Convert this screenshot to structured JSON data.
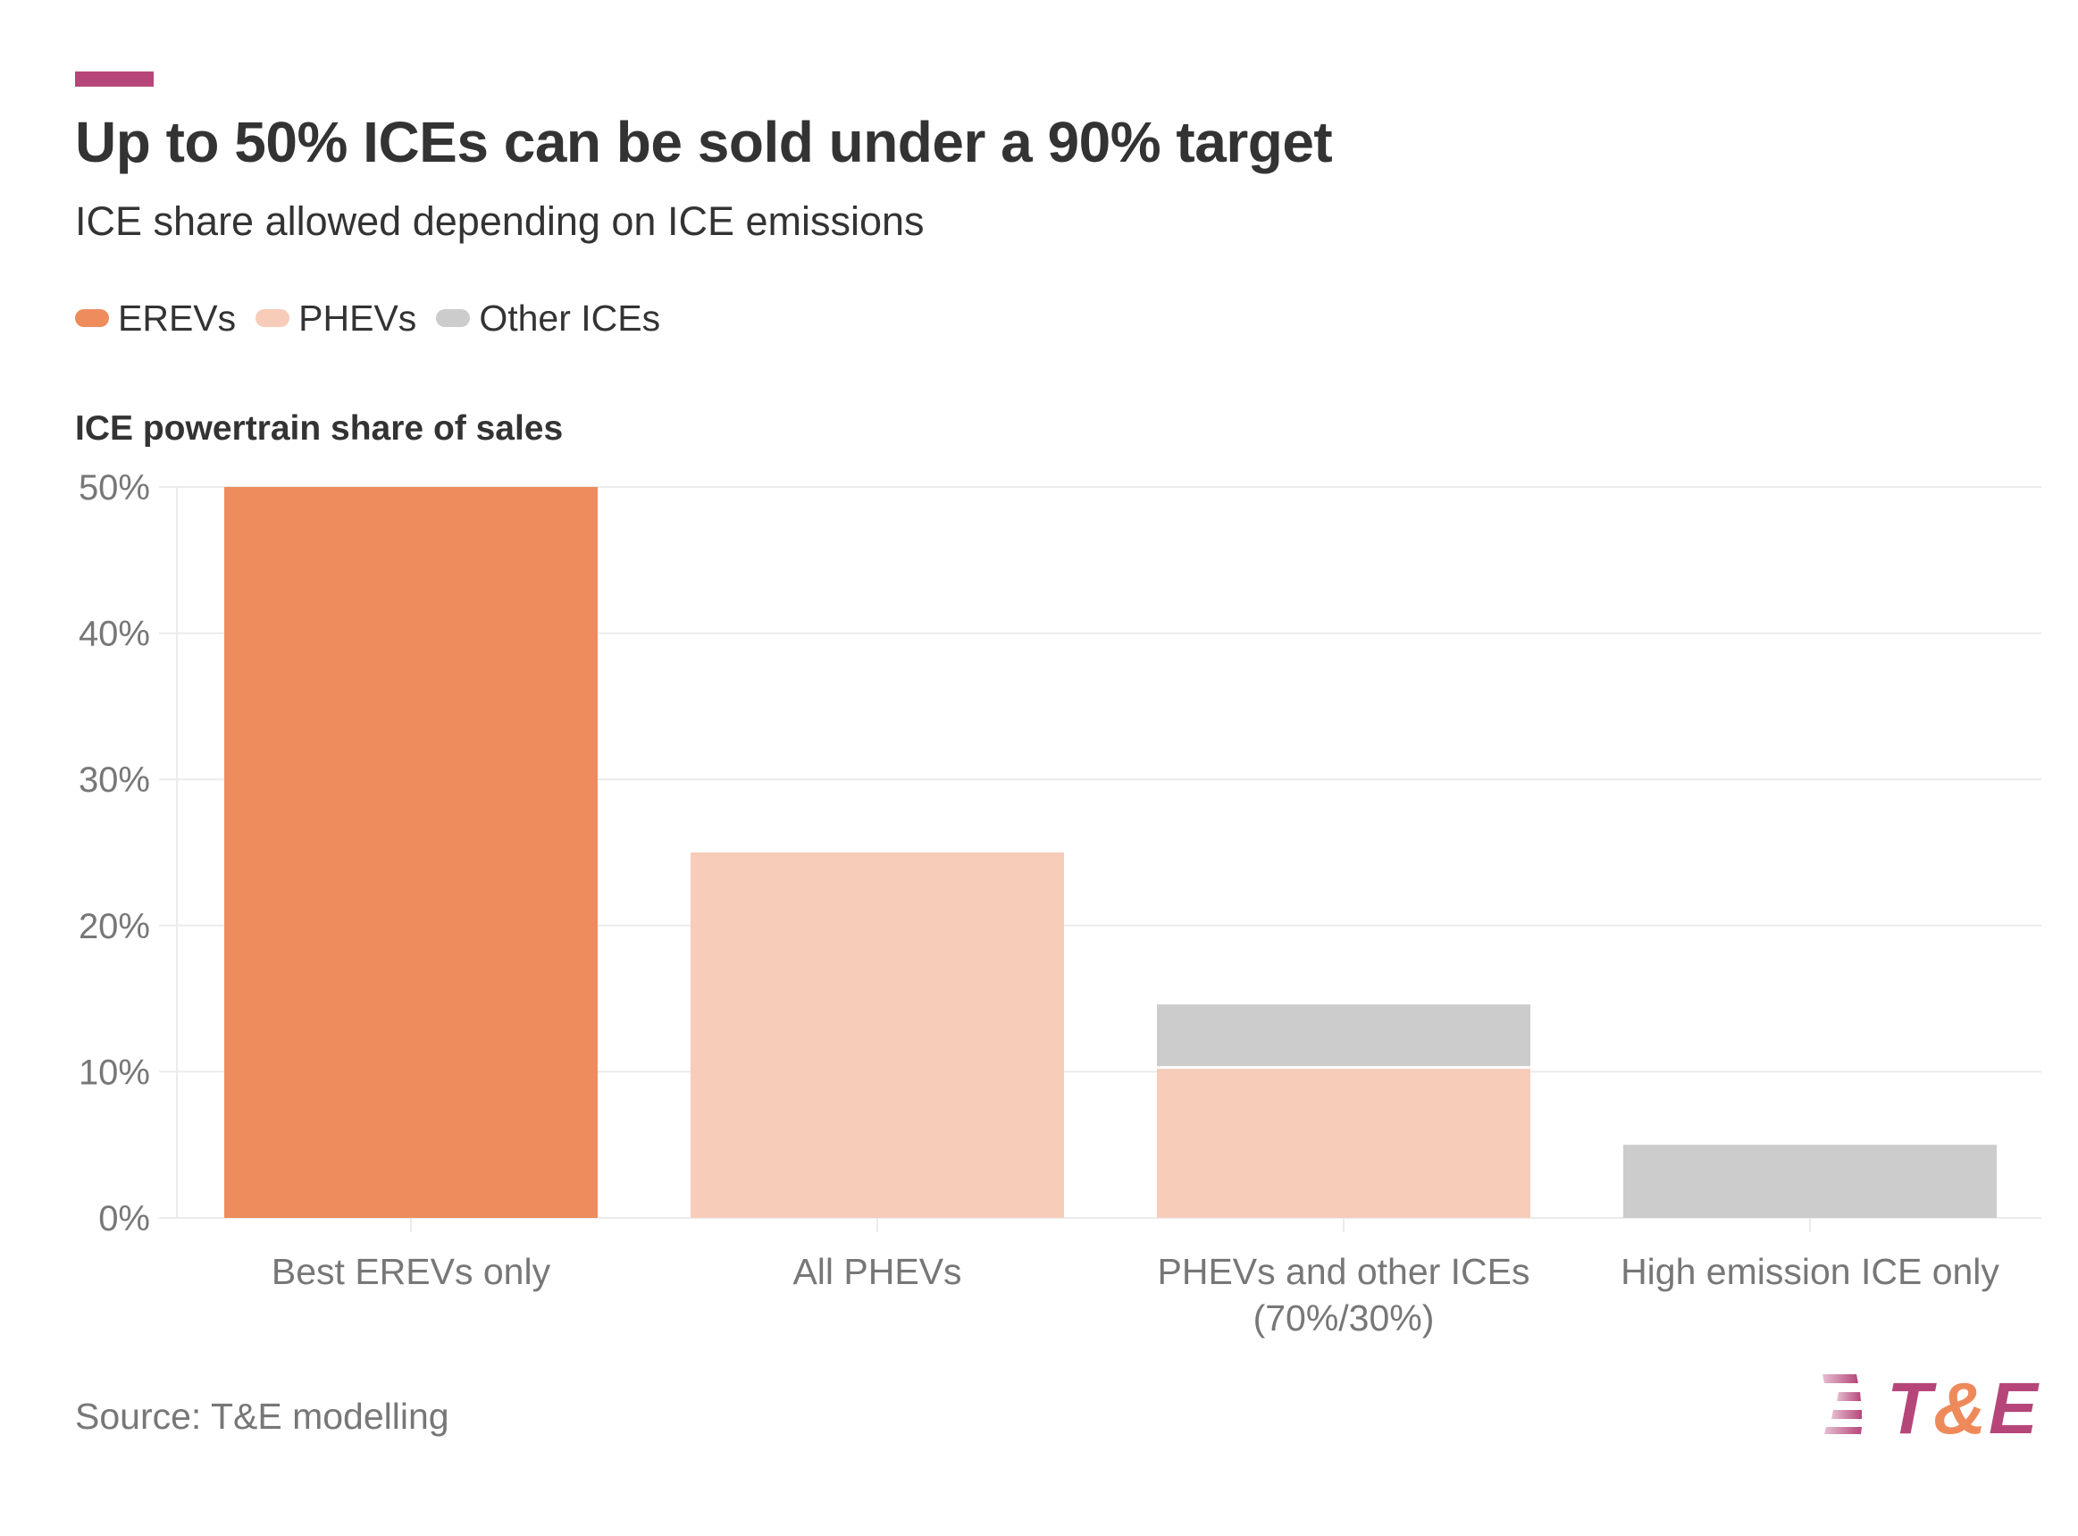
{
  "header": {
    "title": "Up to 50% ICEs can be sold under a 90% target",
    "subtitle": "ICE share allowed depending on ICE emissions"
  },
  "legend": [
    {
      "label": "EREVs",
      "color": "#EE8C5E"
    },
    {
      "label": "PHEVs",
      "color": "#F7CCB8"
    },
    {
      "label": "Other ICEs",
      "color": "#CCCCCC"
    }
  ],
  "footer": {
    "source": "Source: T&E modelling",
    "logo_text": "T&E"
  },
  "colors": {
    "accent": "#B6467A",
    "logo_magenta": "#B6467A",
    "logo_orange": "#EE8A5A",
    "grid": "#EBEBEB"
  },
  "chart_data": {
    "type": "bar",
    "stacked": true,
    "title": "Up to 50% ICEs can be sold under a 90% target",
    "subtitle": "ICE share allowed depending on ICE emissions",
    "ylabel": "ICE powertrain share of sales",
    "xlabel": "",
    "ylim": [
      0,
      50
    ],
    "yticks": [
      0,
      10,
      20,
      30,
      40,
      50
    ],
    "ytick_labels": [
      "0%",
      "10%",
      "20%",
      "30%",
      "40%",
      "50%"
    ],
    "grid": true,
    "legend_position": "top-left",
    "categories": [
      [
        "Best EREVs only"
      ],
      [
        "All PHEVs"
      ],
      [
        "PHEVs and other ICEs",
        "(70%/30%)"
      ],
      [
        "High emission ICE only"
      ]
    ],
    "series": [
      {
        "name": "EREVs",
        "color": "#EE8C5E",
        "values": [
          50,
          0,
          0,
          0
        ]
      },
      {
        "name": "PHEVs",
        "color": "#F7CCB8",
        "values": [
          0,
          25,
          10.2,
          0
        ]
      },
      {
        "name": "Other ICEs",
        "color": "#CCCCCC",
        "values": [
          0,
          0,
          4.4,
          5
        ]
      }
    ],
    "source": "Source: T&E modelling"
  }
}
